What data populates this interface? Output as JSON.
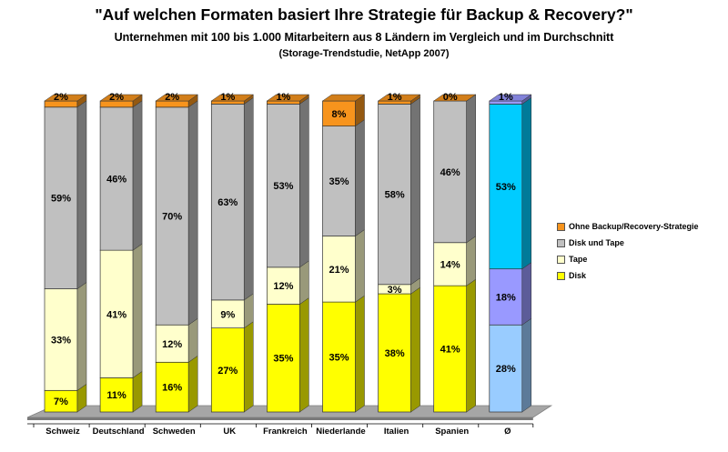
{
  "header": {
    "title": "\"Auf welchen Formaten basiert Ihre Strategie für Backup & Recovery?\"",
    "subtitle": "Unternehmen mit 100 bis 1.000 Mitarbeitern aus 8 Ländern im Vergleich und im Durchschnitt",
    "source": "(Storage-Trendstudie, NetApp 2007)"
  },
  "chart_data": {
    "type": "bar",
    "stacked": true,
    "percent_stacked": true,
    "three_d": true,
    "categories": [
      "Schweiz",
      "Deutschland",
      "Schweden",
      "UK",
      "Frankreich",
      "Niederlande",
      "Italien",
      "Spanien",
      "Ø"
    ],
    "series": [
      {
        "name": "Disk",
        "values": [
          7,
          11,
          16,
          27,
          35,
          35,
          38,
          41,
          28
        ],
        "labels": [
          "7%",
          "11%",
          "16%",
          "27%",
          "35%",
          "35%",
          "38%",
          "41%",
          "28%"
        ]
      },
      {
        "name": "Tape",
        "values": [
          33,
          41,
          12,
          9,
          12,
          21,
          3,
          14,
          18
        ],
        "labels": [
          "33%",
          "41%",
          "12%",
          "9%",
          "12%",
          "21%",
          "3%",
          "14%",
          "18%"
        ]
      },
      {
        "name": "Disk und Tape",
        "values": [
          59,
          46,
          70,
          63,
          53,
          35,
          58,
          46,
          53
        ],
        "labels": [
          "59%",
          "46%",
          "70%",
          "63%",
          "53%",
          "35%",
          "58%",
          "46%",
          "53%"
        ]
      },
      {
        "name": "Ohne Backup/Recovery-Strategie",
        "values": [
          2,
          2,
          2,
          1,
          1,
          8,
          1,
          0,
          1
        ],
        "labels": [
          "2%",
          "2%",
          "2%",
          "1%",
          "1%",
          "8%",
          "1%",
          "0%",
          "1%"
        ]
      }
    ],
    "colors": {
      "Disk": "#ffff00",
      "Tape": "#ffffcc",
      "Disk und Tape": "#c0c0c0",
      "Ohne Backup/Recovery-Strategie": "#f7941d"
    },
    "average_colors": {
      "Disk": "#99ccff",
      "Tape": "#9999ff",
      "Disk und Tape": "#00ccff",
      "Ohne Backup/Recovery-Strategie": "#9999ff"
    },
    "legend_position": "right",
    "legend_order": [
      "Ohne Backup/Recovery-Strategie",
      "Disk und Tape",
      "Tape",
      "Disk"
    ],
    "ylim": [
      0,
      100
    ],
    "grid": false,
    "legend_names": {
      "item0": "Ohne Backup/Recovery-Strategie",
      "item1": "Disk und Tape",
      "item2": "Tape",
      "item3": "Disk"
    }
  }
}
